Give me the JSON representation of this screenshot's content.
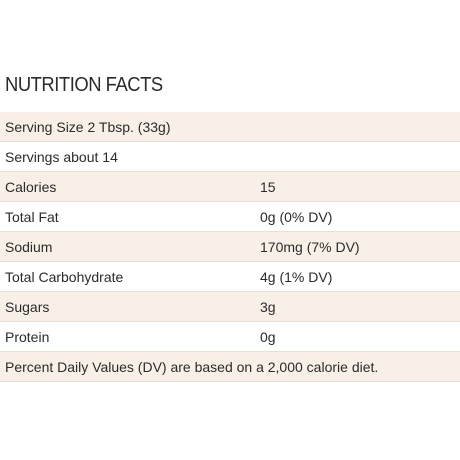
{
  "title": "NUTRITION FACTS",
  "table": {
    "rows": [
      [
        "Serving Size 2 Tbsp. (33g)"
      ],
      [
        "Servings about 14"
      ],
      [
        "Calories",
        "15"
      ],
      [
        "Total Fat",
        "0g (0% DV)"
      ],
      [
        "Sodium",
        "170mg (7% DV)"
      ],
      [
        "Total Carbohydrate",
        "4g (1% DV)"
      ],
      [
        "Sugars",
        "3g"
      ],
      [
        "Protein",
        "0g"
      ],
      [
        "Percent Daily Values (DV) are based on a 2,000 calorie diet."
      ]
    ]
  }
}
